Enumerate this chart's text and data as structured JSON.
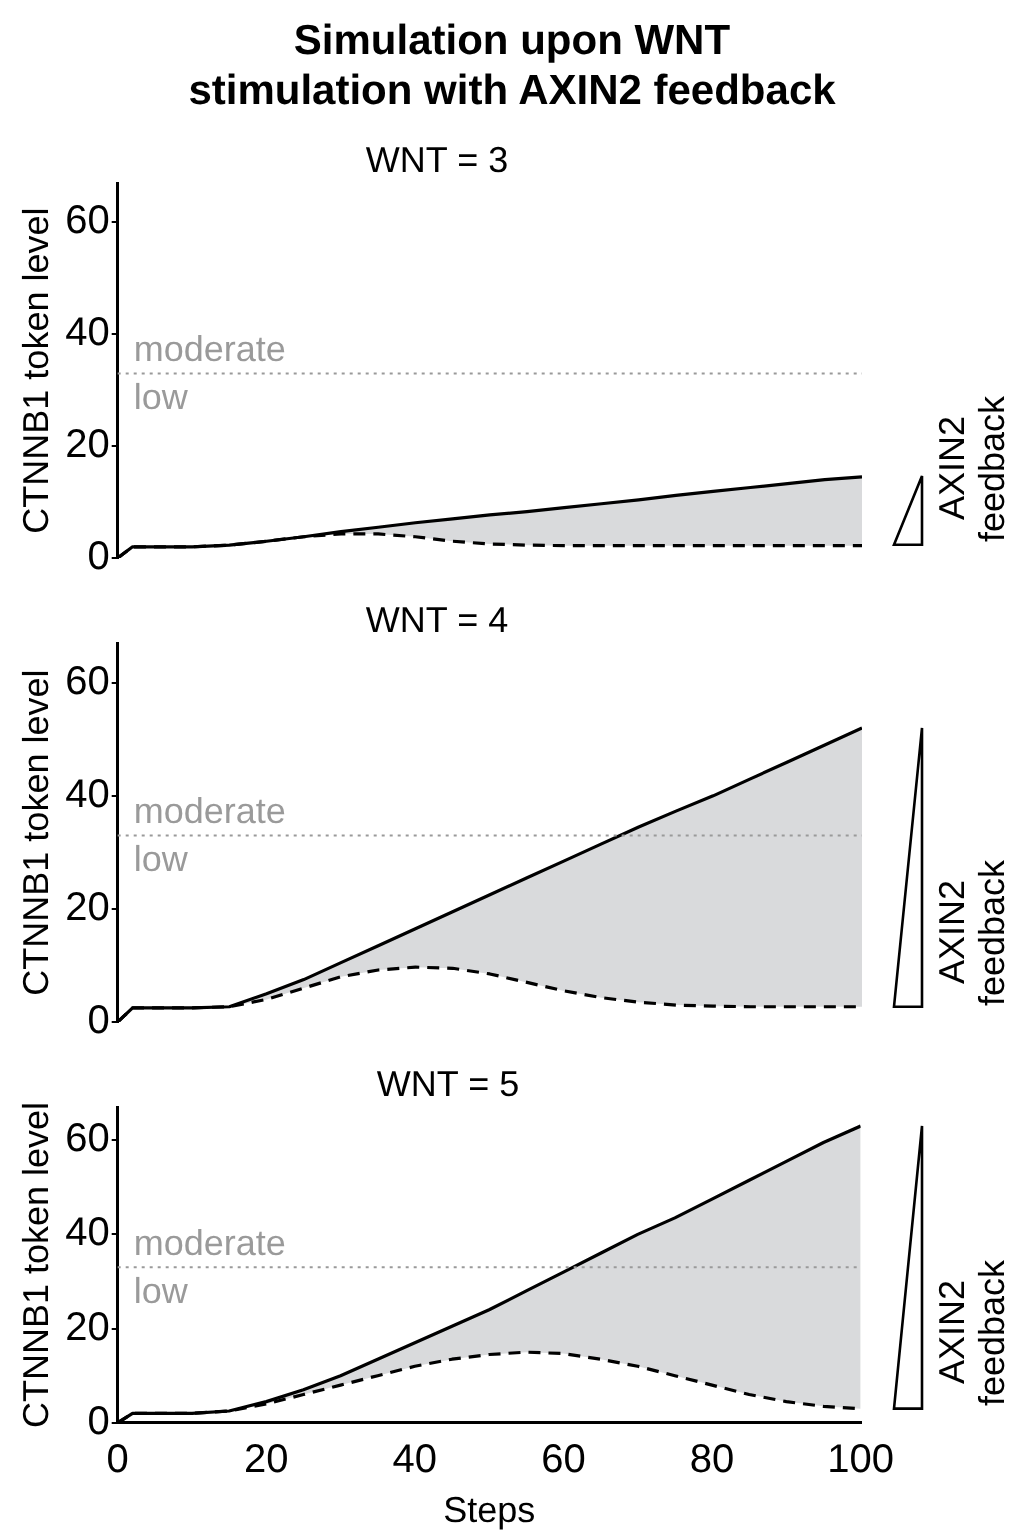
{
  "chart_data": [
    {
      "type": "line",
      "title": "Simulation upon WNT stimulation with AXIN2 feedback",
      "subtitle": "WNT = 3",
      "ylabel": "CTNNB1 token level",
      "y2label": "AXIN2 feedback",
      "x": [
        0,
        2,
        5,
        10,
        15,
        20,
        25,
        30,
        35,
        40,
        45,
        50,
        55,
        60,
        65,
        70,
        75,
        80,
        85,
        90,
        95,
        100
      ],
      "xlim": [
        0,
        100
      ],
      "xticks": [
        0,
        20,
        40,
        60,
        80,
        100
      ],
      "ylim": [
        0,
        67
      ],
      "yticks": [
        0,
        20,
        40,
        60
      ],
      "tick_labels": "y",
      "grid": false,
      "legend": false,
      "marker": "none",
      "series": [
        {
          "color": "#000000",
          "line_style": "solid",
          "values": [
            0,
            2,
            2,
            2,
            2.3,
            3,
            3.8,
            4.7,
            5.5,
            6.3,
            7,
            7.7,
            8.3,
            9,
            9.7,
            10.4,
            11.2,
            11.9,
            12.6,
            13.3,
            14,
            14.5
          ],
          "lower": [
            0,
            2,
            2,
            2,
            2.3,
            3,
            3.8,
            4.3,
            4.3,
            3.8,
            3,
            2.5,
            2.3,
            2.2,
            2.2,
            2.2,
            2.2,
            2.2,
            2.2,
            2.2,
            2.2,
            2.2
          ],
          "upper": [
            0,
            2,
            2,
            2,
            2.3,
            3,
            3.8,
            4.7,
            5.5,
            6.3,
            7,
            7.7,
            8.3,
            9,
            9.7,
            10.4,
            11.2,
            11.9,
            12.6,
            13.3,
            14,
            14.5
          ]
        },
        {
          "color": "#000000",
          "line_style": "dashed",
          "values": [
            0,
            2,
            2,
            2,
            2.3,
            3,
            3.8,
            4.3,
            4.3,
            3.8,
            3,
            2.5,
            2.3,
            2.2,
            2.2,
            2.2,
            2.2,
            2.2,
            2.2,
            2.2,
            2.2,
            2.2
          ]
        }
      ],
      "ref_lines": [
        {
          "axis": "y",
          "value": 33,
          "label": "moderate",
          "color": "#9a9a9a",
          "line_style": "dotted"
        }
      ],
      "annotations": [
        "low"
      ]
    },
    {
      "type": "line",
      "subtitle": "WNT = 4",
      "ylabel": "CTNNB1 token level",
      "y2label": "AXIN2 feedback",
      "x": [
        0,
        2,
        5,
        10,
        15,
        20,
        25,
        30,
        35,
        40,
        45,
        50,
        55,
        60,
        65,
        70,
        75,
        80,
        85,
        90,
        95,
        100
      ],
      "xlim": [
        0,
        100
      ],
      "xticks": [
        0,
        20,
        40,
        60,
        80,
        100
      ],
      "ylim": [
        0,
        67
      ],
      "yticks": [
        0,
        20,
        40,
        60
      ],
      "tick_labels": "y",
      "grid": false,
      "legend": false,
      "marker": "none",
      "series": [
        {
          "color": "#000000",
          "line_style": "solid",
          "values": [
            0,
            2.5,
            2.5,
            2.5,
            2.7,
            5,
            7.5,
            10.5,
            13.5,
            16.5,
            19.5,
            22.5,
            25.5,
            28.5,
            31.5,
            34.5,
            37.3,
            40,
            43,
            46,
            49,
            52
          ],
          "lower": [
            0,
            2.5,
            2.5,
            2.5,
            2.7,
            4,
            6,
            8,
            9.2,
            9.7,
            9.5,
            8.5,
            7,
            5.5,
            4.3,
            3.5,
            3,
            2.8,
            2.7,
            2.7,
            2.7,
            2.7
          ],
          "upper": [
            0,
            2.5,
            2.5,
            2.5,
            2.7,
            5,
            7.5,
            10.5,
            13.5,
            16.5,
            19.5,
            22.5,
            25.5,
            28.5,
            31.5,
            34.5,
            37.3,
            40,
            43,
            46,
            49,
            52
          ]
        },
        {
          "color": "#000000",
          "line_style": "dashed",
          "values": [
            0,
            2.5,
            2.5,
            2.5,
            2.7,
            4,
            6,
            8,
            9.2,
            9.7,
            9.5,
            8.5,
            7,
            5.5,
            4.3,
            3.5,
            3,
            2.8,
            2.7,
            2.7,
            2.7,
            2.7
          ]
        }
      ],
      "ref_lines": [
        {
          "axis": "y",
          "value": 33,
          "label": "moderate",
          "color": "#9a9a9a",
          "line_style": "dotted"
        }
      ],
      "annotations": [
        "low"
      ]
    },
    {
      "type": "line",
      "subtitle": "WNT = 5",
      "xlabel": "Steps",
      "ylabel": "CTNNB1 token level",
      "y2label": "AXIN2 feedback",
      "x": [
        0,
        2,
        5,
        10,
        15,
        20,
        25,
        30,
        35,
        40,
        45,
        50,
        55,
        60,
        65,
        70,
        75,
        80,
        85,
        90,
        95,
        100
      ],
      "xlim": [
        0,
        100
      ],
      "xticks": [
        0,
        20,
        40,
        60,
        80,
        100
      ],
      "ylim": [
        0,
        67
      ],
      "yticks": [
        0,
        20,
        40,
        60
      ],
      "grid": false,
      "legend": false,
      "marker": "none",
      "series": [
        {
          "color": "#000000",
          "line_style": "solid",
          "values": [
            0,
            2,
            2,
            2,
            2.5,
            4.5,
            7,
            10,
            13.5,
            17,
            20.5,
            24,
            28,
            32,
            36,
            40,
            43.5,
            47.5,
            51.5,
            55.5,
            59.5,
            63
          ],
          "lower": [
            0,
            2,
            2,
            2,
            2.5,
            4,
            6,
            8,
            10,
            12,
            13.5,
            14.5,
            15,
            14.7,
            13.5,
            12,
            10,
            8,
            6,
            4.5,
            3.5,
            3
          ],
          "upper": [
            0,
            2,
            2,
            2,
            2.5,
            4.5,
            7,
            10,
            13.5,
            17,
            20.5,
            24,
            28,
            32,
            36,
            40,
            43.5,
            47.5,
            51.5,
            55.5,
            59.5,
            63
          ]
        },
        {
          "color": "#000000",
          "line_style": "dashed",
          "values": [
            0,
            2,
            2,
            2,
            2.5,
            4,
            6,
            8,
            10,
            12,
            13.5,
            14.5,
            15,
            14.7,
            13.5,
            12,
            10,
            8,
            6,
            4.5,
            3.5,
            3
          ]
        }
      ],
      "ref_lines": [
        {
          "axis": "y",
          "value": 33,
          "label": "moderate",
          "color": "#9a9a9a",
          "line_style": "dotted"
        }
      ],
      "annotations": [
        "low"
      ]
    }
  ]
}
